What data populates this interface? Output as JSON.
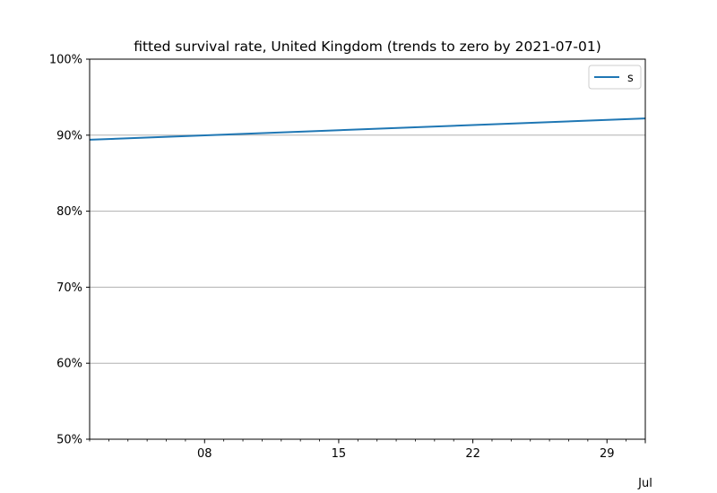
{
  "chart_data": {
    "type": "line",
    "title": "fitted survival rate, United Kingdom (trends to zero by 2021-07-01)",
    "xlabel": "",
    "ylabel": "",
    "x_range": [
      "2020-07-02",
      "2020-07-31"
    ],
    "ylim": [
      0.5,
      1.0
    ],
    "y_ticks": [
      0.5,
      0.6,
      0.7,
      0.8,
      0.9,
      1.0
    ],
    "y_tick_labels": [
      "50%",
      "60%",
      "70%",
      "80%",
      "90%",
      "100%"
    ],
    "x_ticks": [
      "2020-07-08",
      "2020-07-15",
      "2020-07-22",
      "2020-07-29",
      "2020-08-01"
    ],
    "x_tick_labels": [
      "08",
      "15",
      "22",
      "29",
      "Jul"
    ],
    "x_minor_ticks": "daily",
    "grid": "y-major",
    "legend": {
      "placement": "upper-right",
      "entries": [
        "s"
      ]
    },
    "series": [
      {
        "name": "s",
        "color": "#1f77b4",
        "x": [
          "2020-07-02",
          "2020-07-31"
        ],
        "y": [
          0.894,
          0.922
        ]
      }
    ]
  }
}
